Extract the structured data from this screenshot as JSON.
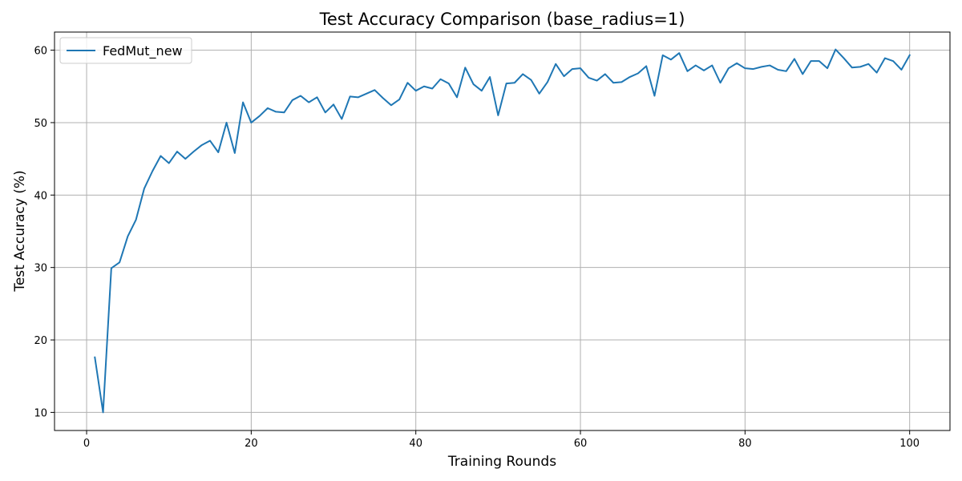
{
  "chart_data": {
    "type": "line",
    "title": "Test Accuracy Comparison (base_radius=1)",
    "xlabel": "Training Rounds",
    "ylabel": "Test Accuracy (%)",
    "xlim": [
      -3.9,
      104.9
    ],
    "ylim": [
      7.5,
      62.5
    ],
    "xticks": [
      0,
      20,
      40,
      60,
      80,
      100
    ],
    "yticks": [
      10,
      20,
      30,
      40,
      50,
      60
    ],
    "grid": true,
    "legend_position": "top-left",
    "colors": {
      "series": "#1f77b4",
      "grid": "#b0b0b0",
      "axes": "#000000"
    },
    "series": [
      {
        "name": "FedMut_new",
        "x": [
          1,
          2,
          3,
          4,
          5,
          6,
          7,
          8,
          9,
          10,
          11,
          12,
          13,
          14,
          15,
          16,
          17,
          18,
          19,
          20,
          21,
          22,
          23,
          24,
          25,
          26,
          27,
          28,
          29,
          30,
          31,
          32,
          33,
          34,
          35,
          36,
          37,
          38,
          39,
          40,
          41,
          42,
          43,
          44,
          45,
          46,
          47,
          48,
          49,
          50,
          51,
          52,
          53,
          54,
          55,
          56,
          57,
          58,
          59,
          60,
          61,
          62,
          63,
          64,
          65,
          66,
          67,
          68,
          69,
          70,
          71,
          72,
          73,
          74,
          75,
          76,
          77,
          78,
          79,
          80,
          81,
          82,
          83,
          84,
          85,
          86,
          87,
          88,
          89,
          90,
          91,
          92,
          93,
          94,
          95,
          96,
          97,
          98,
          99,
          100
        ],
        "y": [
          17.6,
          10.0,
          29.9,
          30.7,
          34.3,
          36.6,
          40.9,
          43.3,
          45.4,
          44.4,
          46.0,
          45.0,
          46.0,
          46.9,
          47.5,
          45.9,
          50.0,
          45.8,
          52.8,
          50.0,
          50.9,
          52.0,
          51.5,
          51.4,
          53.1,
          53.7,
          52.8,
          53.5,
          51.4,
          52.5,
          50.5,
          53.6,
          53.5,
          54.0,
          54.5,
          53.4,
          52.4,
          53.2,
          55.5,
          54.4,
          55.0,
          54.7,
          56.0,
          55.4,
          53.5,
          57.6,
          55.3,
          54.4,
          56.3,
          51.0,
          55.4,
          55.5,
          56.7,
          55.9,
          54.0,
          55.6,
          58.1,
          56.4,
          57.4,
          57.5,
          56.2,
          55.8,
          56.7,
          55.5,
          55.6,
          56.3,
          56.8,
          57.8,
          53.7,
          59.3,
          58.7,
          59.6,
          57.1,
          57.9,
          57.2,
          57.9,
          55.5,
          57.5,
          58.2,
          57.5,
          57.4,
          57.7,
          57.9,
          57.3,
          57.1,
          58.8,
          56.7,
          58.5,
          58.5,
          57.5,
          60.1,
          58.9,
          57.6,
          57.7,
          58.1,
          56.9,
          58.9,
          58.5,
          57.3,
          59.3
        ]
      }
    ]
  }
}
